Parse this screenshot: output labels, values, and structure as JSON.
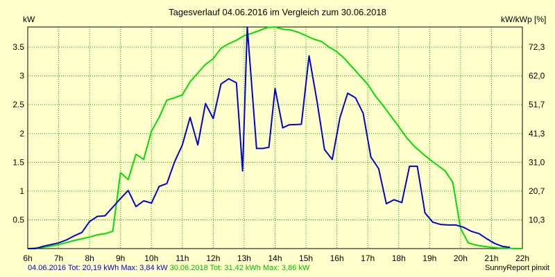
{
  "chart_data": {
    "type": "line",
    "title": "Tagesverlauf 04.06.2016 im Vergleich zum 30.06.2018",
    "ylabel_left": "kW",
    "ylabel_right": "kW/kWp [%]",
    "xlim": [
      6,
      22
    ],
    "ylim": [
      0,
      3.85
    ],
    "x_ticks": [
      "6h",
      "7h",
      "8h",
      "9h",
      "10h",
      "11h",
      "12h",
      "13h",
      "14h",
      "15h",
      "16h",
      "17h",
      "18h",
      "19h",
      "20h",
      "21h",
      "22h"
    ],
    "y_ticks_left": [
      "0.5",
      "1",
      "1.5",
      "2",
      "2.5",
      "3",
      "3.5"
    ],
    "y_ticks_right": [
      "10,3",
      "20,7",
      "31,0",
      "41,3",
      "51,7",
      "62,0",
      "72,3"
    ],
    "grid": true,
    "series": [
      {
        "name": "04.06.2016",
        "color": "#0000cc",
        "x": [
          6.0,
          6.25,
          6.5,
          6.75,
          7.0,
          7.25,
          7.5,
          7.75,
          8.0,
          8.25,
          8.5,
          8.75,
          9.0,
          9.25,
          9.5,
          9.75,
          10.0,
          10.25,
          10.5,
          10.75,
          11.0,
          11.25,
          11.5,
          11.75,
          12.0,
          12.25,
          12.5,
          12.75,
          12.95,
          13.1,
          13.4,
          13.6,
          13.8,
          14.0,
          14.25,
          14.45,
          14.85,
          15.1,
          15.35,
          15.6,
          15.85,
          16.1,
          16.35,
          16.6,
          16.85,
          17.1,
          17.35,
          17.6,
          17.85,
          18.1,
          18.35,
          18.6,
          18.85,
          19.1,
          19.35,
          19.6,
          19.85,
          20.1,
          20.35,
          20.6,
          20.85,
          21.1,
          21.35,
          21.6
        ],
        "y": [
          0.0,
          0.0,
          0.04,
          0.07,
          0.1,
          0.15,
          0.22,
          0.28,
          0.47,
          0.56,
          0.57,
          0.72,
          0.87,
          1.01,
          0.73,
          0.83,
          0.79,
          1.08,
          1.13,
          1.51,
          1.8,
          2.28,
          1.8,
          2.52,
          2.26,
          2.86,
          2.95,
          2.88,
          1.35,
          3.85,
          1.74,
          1.74,
          1.76,
          2.78,
          2.1,
          2.15,
          2.16,
          3.35,
          2.58,
          1.72,
          1.55,
          2.28,
          2.7,
          2.62,
          2.35,
          1.59,
          1.39,
          0.78,
          0.85,
          0.8,
          1.43,
          1.43,
          0.62,
          0.46,
          0.42,
          0.41,
          0.41,
          0.37,
          0.3,
          0.26,
          0.17,
          0.09,
          0.04,
          0.02
        ]
      },
      {
        "name": "30.06.2018",
        "color": "#00dd00",
        "x": [
          6.0,
          6.5,
          7.0,
          7.5,
          8.0,
          8.25,
          8.5,
          8.75,
          9.0,
          9.25,
          9.5,
          9.75,
          10.0,
          10.25,
          10.5,
          10.75,
          11.0,
          11.25,
          11.5,
          11.75,
          12.0,
          12.25,
          12.5,
          12.75,
          13.0,
          13.25,
          13.5,
          13.75,
          14.0,
          14.25,
          14.5,
          14.75,
          15.0,
          15.25,
          15.5,
          15.75,
          16.0,
          16.25,
          16.5,
          16.75,
          17.0,
          17.25,
          17.5,
          17.75,
          18.0,
          18.25,
          18.5,
          18.75,
          19.0,
          19.25,
          19.5,
          19.75,
          20.0,
          20.25,
          20.5,
          20.75,
          21.0,
          21.25,
          21.5,
          21.75,
          22.0
        ],
        "y": [
          0.0,
          0.02,
          0.07,
          0.14,
          0.2,
          0.24,
          0.26,
          0.3,
          1.32,
          1.2,
          1.64,
          1.55,
          2.04,
          2.28,
          2.58,
          2.62,
          2.67,
          2.9,
          3.05,
          3.2,
          3.3,
          3.48,
          3.56,
          3.62,
          3.7,
          3.74,
          3.79,
          3.84,
          3.85,
          3.81,
          3.8,
          3.76,
          3.7,
          3.64,
          3.6,
          3.5,
          3.42,
          3.3,
          3.15,
          3.0,
          2.85,
          2.65,
          2.48,
          2.3,
          2.12,
          1.93,
          1.78,
          1.66,
          1.55,
          1.45,
          1.35,
          1.15,
          0.35,
          0.1,
          0.06,
          0.04,
          0.02,
          0.01,
          0.01,
          0.0,
          0.0
        ]
      }
    ]
  },
  "footer": {
    "left_2016": "04.06.2016 Tot: 20,19 kWh Max: 3,84 kW",
    "left_2018": "30.06.2018 Tot: 31,42 kWh Max: 3,86 kW",
    "right": "SunnyReport pinxit"
  }
}
